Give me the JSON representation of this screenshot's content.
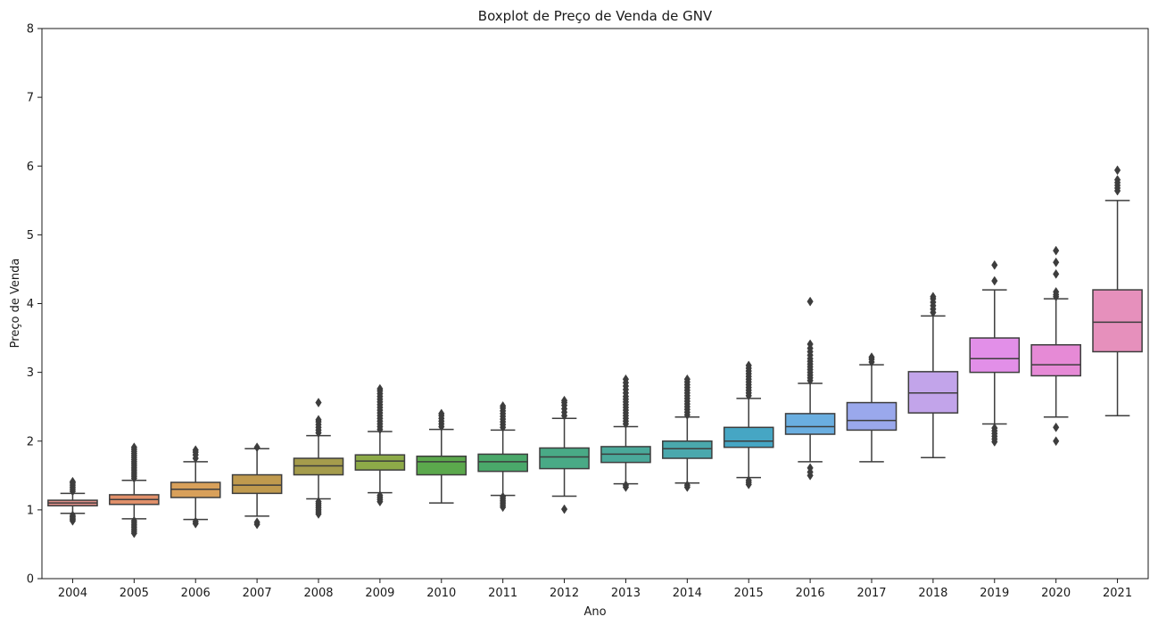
{
  "chart_data": {
    "type": "boxplot",
    "title": "Boxplot de Preço de Venda de GNV",
    "xlabel": "Ano",
    "ylabel": "Preço de Venda",
    "ylim": [
      0,
      8
    ],
    "yticks": [
      "0",
      "1",
      "2",
      "3",
      "4",
      "5",
      "6",
      "7",
      "8"
    ],
    "grid": false,
    "categories": [
      "2004",
      "2005",
      "2006",
      "2007",
      "2008",
      "2009",
      "2010",
      "2011",
      "2012",
      "2013",
      "2014",
      "2015",
      "2016",
      "2017",
      "2018",
      "2019",
      "2020",
      "2021"
    ],
    "boxes": [
      {
        "year": "2004",
        "color": "#e1908a",
        "whisker_low": 0.95,
        "q1": 1.06,
        "median": 1.1,
        "q3": 1.14,
        "whisker_high": 1.24,
        "outliers": [
          0.84,
          0.86,
          0.88,
          0.9,
          0.92,
          1.27,
          1.3,
          1.33,
          1.36,
          1.39,
          1.41
        ]
      },
      {
        "year": "2005",
        "color": "#e1906a",
        "whisker_low": 0.87,
        "q1": 1.08,
        "median": 1.15,
        "q3": 1.22,
        "whisker_high": 1.43,
        "outliers": [
          0.66,
          0.69,
          0.72,
          0.75,
          0.78,
          0.81,
          0.84,
          1.46,
          1.49,
          1.52,
          1.55,
          1.58,
          1.61,
          1.64,
          1.67,
          1.7,
          1.73,
          1.76,
          1.79,
          1.82,
          1.85,
          1.88,
          1.91
        ]
      },
      {
        "year": "2006",
        "color": "#d8a05a",
        "whisker_low": 0.86,
        "q1": 1.18,
        "median": 1.3,
        "q3": 1.4,
        "whisker_high": 1.7,
        "outliers": [
          0.8,
          0.83,
          1.75,
          1.8,
          1.84,
          1.87
        ]
      },
      {
        "year": "2007",
        "color": "#c09a4e",
        "whisker_low": 0.91,
        "q1": 1.24,
        "median": 1.36,
        "q3": 1.51,
        "whisker_high": 1.89,
        "outliers": [
          0.79,
          0.82,
          1.91
        ]
      },
      {
        "year": "2008",
        "color": "#a59c4c",
        "whisker_low": 1.16,
        "q1": 1.51,
        "median": 1.64,
        "q3": 1.75,
        "whisker_high": 2.08,
        "outliers": [
          0.94,
          0.97,
          1.0,
          1.03,
          1.06,
          1.09,
          1.12,
          2.12,
          2.16,
          2.2,
          2.24,
          2.28,
          2.31,
          2.56
        ]
      },
      {
        "year": "2009",
        "color": "#8daa48",
        "whisker_low": 1.25,
        "q1": 1.58,
        "median": 1.71,
        "q3": 1.8,
        "whisker_high": 2.14,
        "outliers": [
          1.12,
          1.15,
          1.18,
          1.21,
          2.17,
          2.21,
          2.25,
          2.29,
          2.33,
          2.37,
          2.41,
          2.45,
          2.49,
          2.53,
          2.57,
          2.61,
          2.65,
          2.69,
          2.73,
          2.76
        ]
      },
      {
        "year": "2010",
        "color": "#5ba84c",
        "whisker_low": 1.1,
        "q1": 1.51,
        "median": 1.7,
        "q3": 1.78,
        "whisker_high": 2.17,
        "outliers": [
          2.21,
          2.25,
          2.29,
          2.33,
          2.37,
          2.4
        ]
      },
      {
        "year": "2011",
        "color": "#4aa86a",
        "whisker_low": 1.21,
        "q1": 1.56,
        "median": 1.7,
        "q3": 1.81,
        "whisker_high": 2.16,
        "outliers": [
          1.04,
          1.07,
          1.1,
          1.13,
          1.16,
          1.19,
          2.2,
          2.24,
          2.28,
          2.32,
          2.36,
          2.4,
          2.44,
          2.48,
          2.51
        ]
      },
      {
        "year": "2012",
        "color": "#49aa86",
        "whisker_low": 1.2,
        "q1": 1.6,
        "median": 1.77,
        "q3": 1.9,
        "whisker_high": 2.33,
        "outliers": [
          1.01,
          2.37,
          2.42,
          2.47,
          2.52,
          2.56,
          2.59
        ]
      },
      {
        "year": "2013",
        "color": "#4aa99a",
        "whisker_low": 1.38,
        "q1": 1.69,
        "median": 1.81,
        "q3": 1.92,
        "whisker_high": 2.21,
        "outliers": [
          1.33,
          1.36,
          2.25,
          2.29,
          2.33,
          2.37,
          2.41,
          2.45,
          2.49,
          2.53,
          2.57,
          2.61,
          2.65,
          2.7,
          2.75,
          2.8,
          2.85,
          2.9
        ]
      },
      {
        "year": "2014",
        "color": "#4aa8ad",
        "whisker_low": 1.39,
        "q1": 1.75,
        "median": 1.89,
        "q3": 2.0,
        "whisker_high": 2.35,
        "outliers": [
          1.33,
          1.36,
          2.38,
          2.42,
          2.46,
          2.5,
          2.54,
          2.58,
          2.62,
          2.66,
          2.7,
          2.74,
          2.78,
          2.82,
          2.86,
          2.9
        ]
      },
      {
        "year": "2015",
        "color": "#46a6c4",
        "whisker_low": 1.47,
        "q1": 1.91,
        "median": 2.0,
        "q3": 2.2,
        "whisker_high": 2.62,
        "outliers": [
          1.37,
          1.4,
          1.43,
          2.66,
          2.7,
          2.74,
          2.78,
          2.82,
          2.86,
          2.9,
          2.94,
          2.98,
          3.02,
          3.06,
          3.1
        ]
      },
      {
        "year": "2016",
        "color": "#6aaee0",
        "whisker_low": 1.7,
        "q1": 2.1,
        "median": 2.21,
        "q3": 2.4,
        "whisker_high": 2.84,
        "outliers": [
          1.5,
          1.55,
          1.61,
          2.88,
          2.92,
          2.96,
          3.0,
          3.04,
          3.08,
          3.12,
          3.16,
          3.2,
          3.25,
          3.3,
          3.35,
          3.41,
          4.03
        ]
      },
      {
        "year": "2017",
        "color": "#9aa8ec",
        "whisker_low": 1.7,
        "q1": 2.16,
        "median": 2.3,
        "q3": 2.56,
        "whisker_high": 3.11,
        "outliers": [
          3.15,
          3.19,
          3.22
        ]
      },
      {
        "year": "2018",
        "color": "#c2a4ea",
        "whisker_low": 1.76,
        "q1": 2.41,
        "median": 2.7,
        "q3": 3.01,
        "whisker_high": 3.82,
        "outliers": [
          3.87,
          3.92,
          3.97,
          4.02,
          4.07,
          4.1
        ]
      },
      {
        "year": "2019",
        "color": "#e28fe8",
        "whisker_low": 2.25,
        "q1": 3.0,
        "median": 3.2,
        "q3": 3.5,
        "whisker_high": 4.2,
        "outliers": [
          1.99,
          2.03,
          2.07,
          2.11,
          2.15,
          2.19,
          4.33,
          4.56
        ]
      },
      {
        "year": "2020",
        "color": "#e68ad6",
        "whisker_low": 2.35,
        "q1": 2.95,
        "median": 3.11,
        "q3": 3.4,
        "whisker_high": 4.07,
        "outliers": [
          2.0,
          2.2,
          4.1,
          4.13,
          4.17,
          4.43,
          4.6,
          4.77
        ]
      },
      {
        "year": "2021",
        "color": "#e690bc",
        "whisker_low": 2.37,
        "q1": 3.3,
        "median": 3.73,
        "q3": 4.2,
        "whisker_high": 5.5,
        "outliers": [
          5.64,
          5.68,
          5.72,
          5.76,
          5.8,
          5.94
        ]
      }
    ]
  }
}
